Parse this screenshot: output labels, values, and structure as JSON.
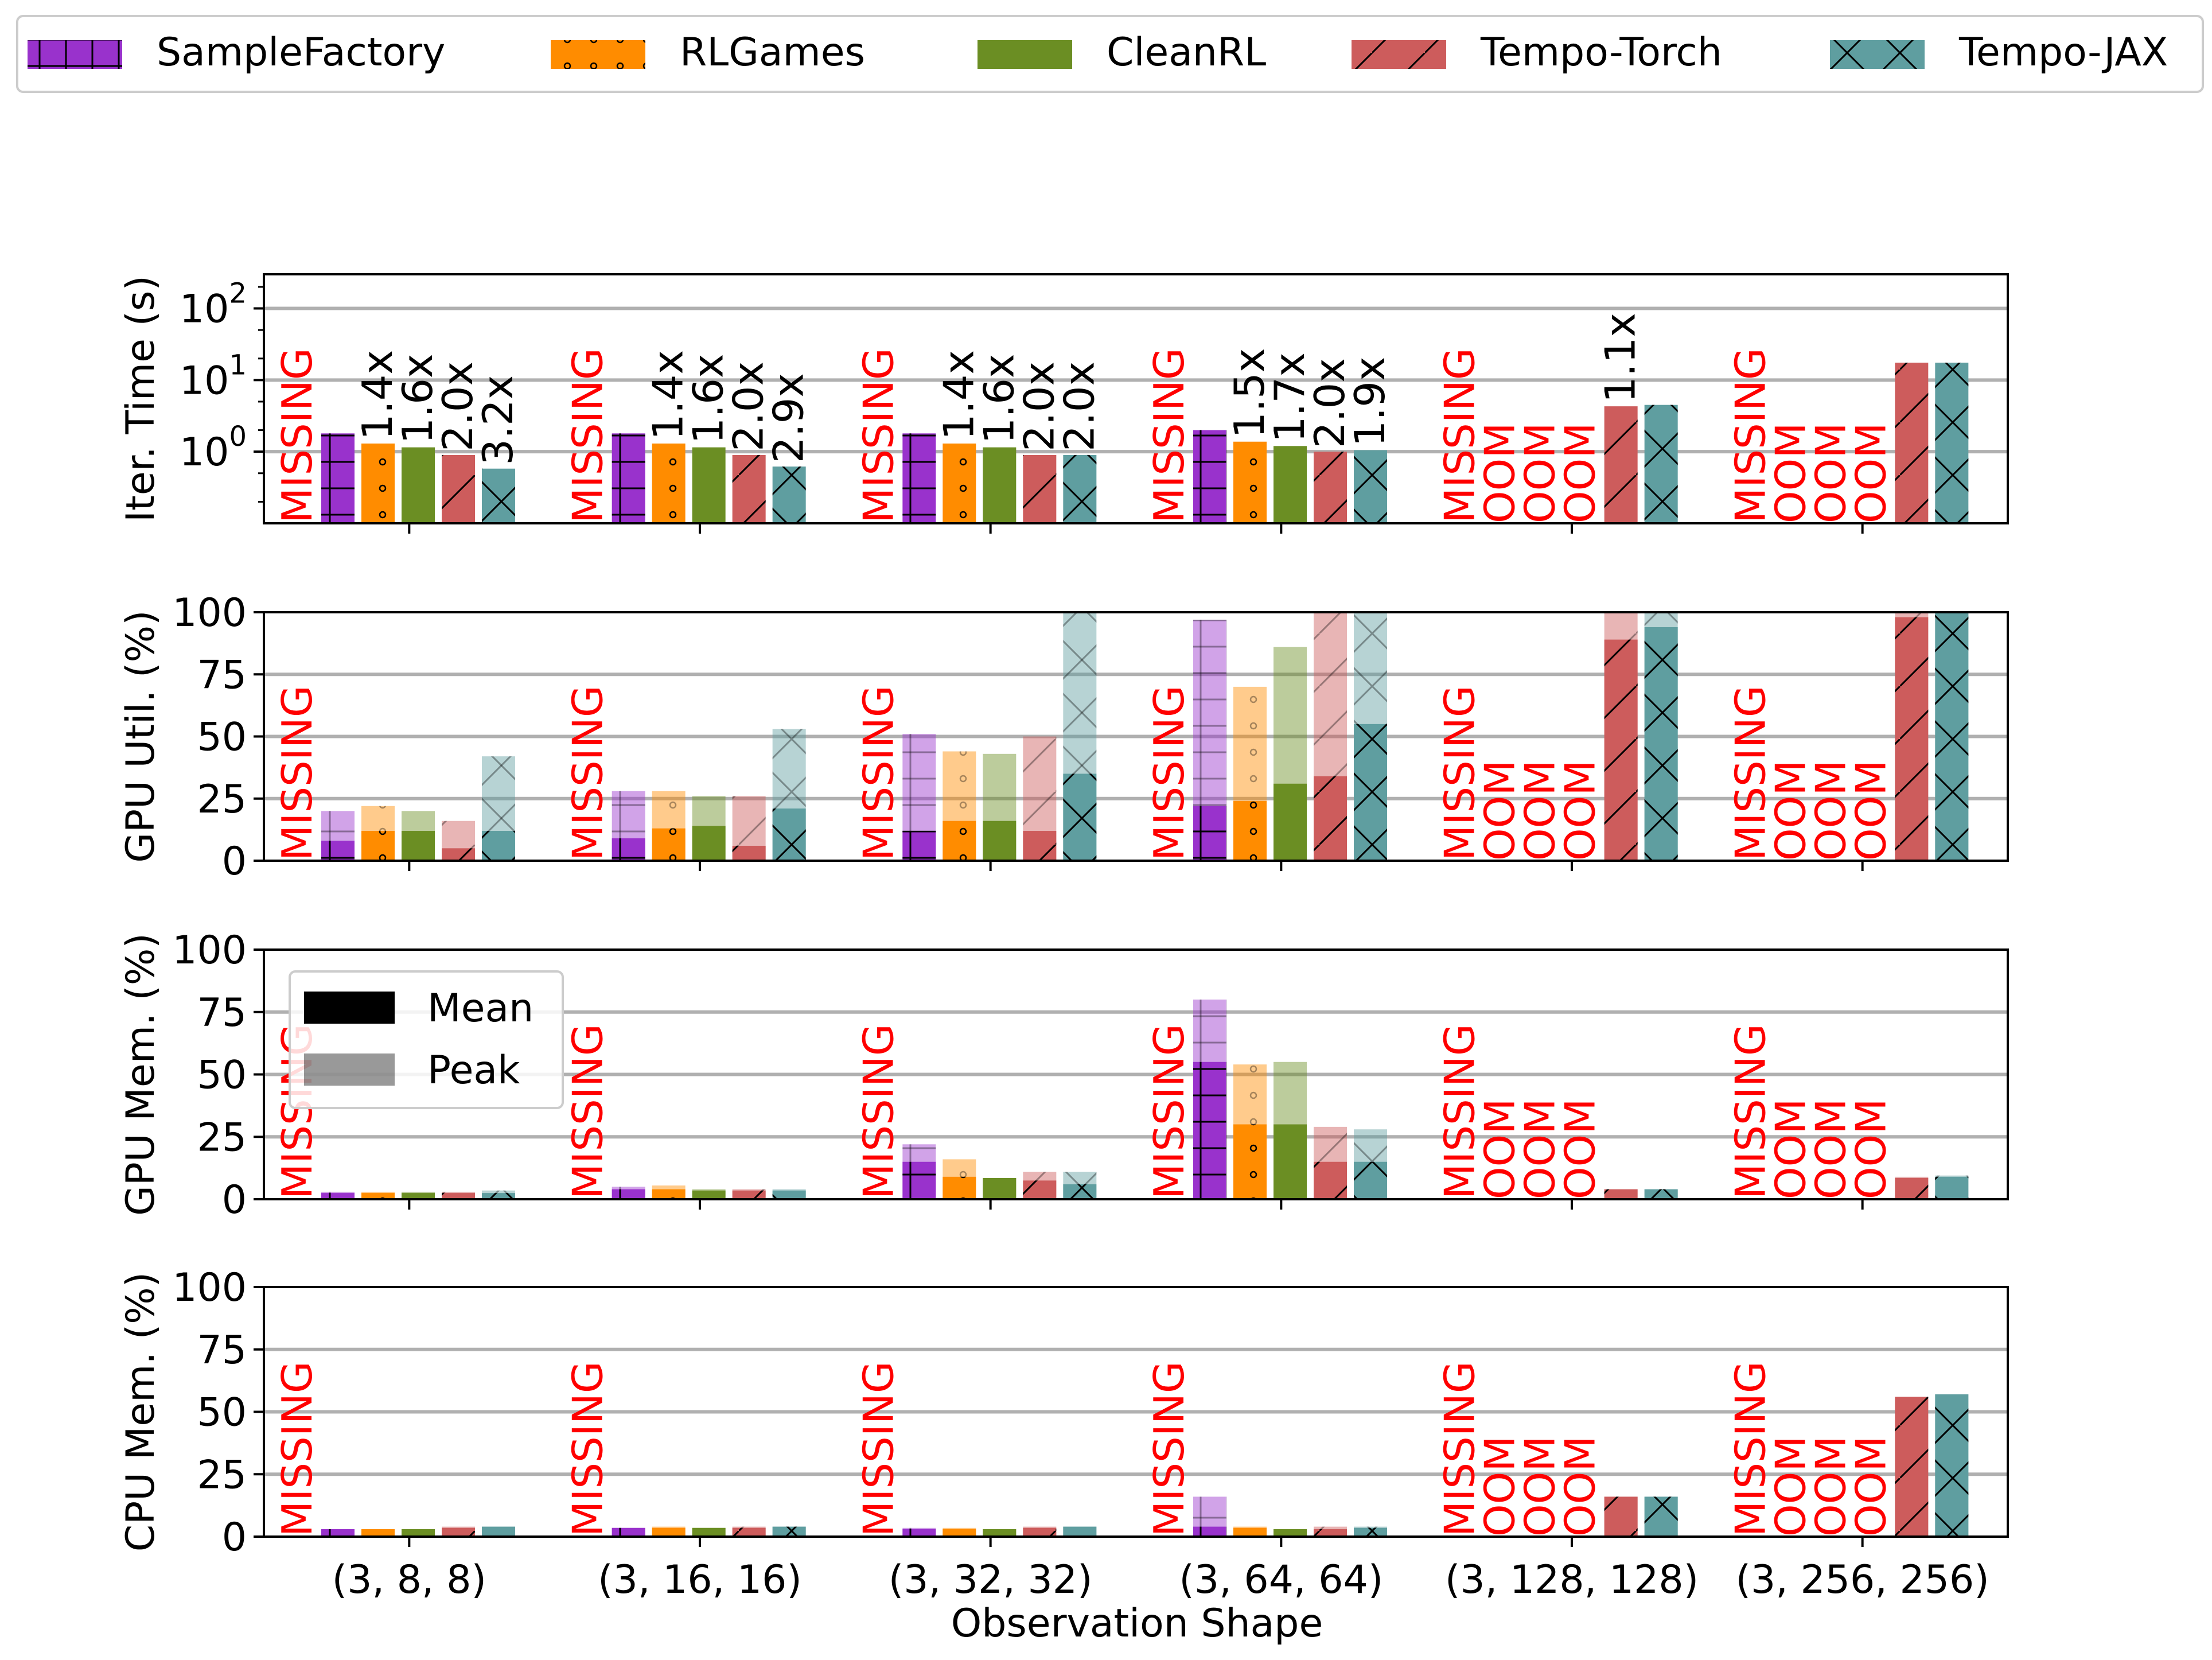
{
  "legend": {
    "items": [
      "SampleFactory",
      "RLGames",
      "CleanRL",
      "Tempo-Torch",
      "Tempo-JAX"
    ],
    "stat_items": [
      "Mean",
      "Peak"
    ]
  },
  "colors": {
    "SampleFactory": "#9932CC",
    "RLGames": "#FF8C00",
    "CleanRL": "#6B8E23",
    "Tempo-Torch": "#CD5C5C",
    "Tempo-JAX": "#5F9EA0",
    "missing": "#FF0000",
    "grid": "#b0b0b0"
  },
  "hatches": {
    "SampleFactory": "plus",
    "RLGames": "dots",
    "CleanRL": "none",
    "Tempo-Torch": "slash",
    "Tempo-JAX": "cross"
  },
  "chart_data": {
    "type": "bar",
    "xlabel": "Observation Shape",
    "categories": [
      "(3, 8, 8)",
      "(3, 16, 16)",
      "(3, 32, 32)",
      "(3, 64, 64)",
      "(3, 128, 128)",
      "(3, 256, 256)"
    ],
    "missing_label": "MISSING",
    "oom_label": "OOM",
    "series_names": [
      "SampleFactory",
      "RLGames",
      "CleanRL",
      "Tempo-Torch",
      "Tempo-JAX"
    ],
    "panels": [
      {
        "ylabel": "Iter. Time (s)",
        "scale": "log",
        "ylim": [
          0.1,
          300
        ],
        "yticks": [
          1,
          10,
          100
        ],
        "ytick_labels": [
          "10^0",
          "10^1",
          "10^2"
        ],
        "values": [
          [
            1.8,
            1.3,
            1.15,
            0.9,
            0.58
          ],
          [
            1.8,
            1.3,
            1.15,
            0.9,
            0.62
          ],
          [
            1.8,
            1.3,
            1.15,
            0.9,
            0.9
          ],
          [
            2.0,
            1.38,
            1.2,
            1.0,
            1.05
          ],
          [
            null,
            null,
            null,
            4.3,
            4.5
          ],
          [
            null,
            null,
            null,
            17.5,
            17.5
          ]
        ],
        "speedups": [
          [
            "",
            "1.4x",
            "1.6x",
            "2.0x",
            "3.2x"
          ],
          [
            "",
            "1.4x",
            "1.6x",
            "2.0x",
            "2.9x"
          ],
          [
            "",
            "1.4x",
            "1.6x",
            "2.0x",
            "2.0x"
          ],
          [
            "",
            "1.5x",
            "1.7x",
            "2.0x",
            "1.9x"
          ],
          [
            "",
            "",
            "",
            "1.1x",
            ""
          ],
          [
            "",
            "",
            "",
            "",
            ""
          ]
        ]
      },
      {
        "ylabel": "GPU Util. (%)",
        "scale": "linear",
        "ylim": [
          0,
          100
        ],
        "yticks": [
          0,
          25,
          50,
          75,
          100
        ],
        "ytick_labels": [
          "0",
          "25",
          "50",
          "75",
          "100"
        ],
        "mean": [
          [
            8,
            12,
            12,
            5,
            12
          ],
          [
            9,
            13,
            14,
            6,
            21
          ],
          [
            12,
            16,
            16,
            12,
            35
          ],
          [
            22,
            24,
            31,
            34,
            55
          ],
          [
            null,
            null,
            null,
            89,
            94
          ],
          [
            null,
            null,
            null,
            98,
            100
          ]
        ],
        "peak": [
          [
            20,
            22,
            20,
            16,
            42
          ],
          [
            28,
            28,
            26,
            26,
            53
          ],
          [
            51,
            44,
            43,
            50,
            100
          ],
          [
            97,
            70,
            86,
            100,
            100
          ],
          [
            null,
            null,
            null,
            100,
            100
          ],
          [
            null,
            null,
            null,
            100,
            100
          ]
        ]
      },
      {
        "ylabel": "GPU Mem. (%)",
        "scale": "linear",
        "ylim": [
          0,
          100
        ],
        "yticks": [
          0,
          25,
          50,
          75,
          100
        ],
        "ytick_labels": [
          "0",
          "25",
          "50",
          "75",
          "100"
        ],
        "mean": [
          [
            2.5,
            2.5,
            2.5,
            2.5,
            2.5
          ],
          [
            4,
            4,
            3.5,
            3.5,
            3.5
          ],
          [
            15,
            9,
            8.5,
            7.5,
            6
          ],
          [
            55,
            30,
            30,
            15,
            15
          ],
          [
            null,
            null,
            null,
            4,
            4
          ],
          [
            null,
            null,
            null,
            8.5,
            9
          ]
        ],
        "peak": [
          [
            3,
            3,
            3,
            3,
            3.5
          ],
          [
            5,
            5.5,
            4,
            4,
            4
          ],
          [
            22,
            16,
            8.5,
            11,
            11
          ],
          [
            80,
            54,
            55,
            29,
            28
          ],
          [
            null,
            null,
            null,
            4,
            4
          ],
          [
            null,
            null,
            null,
            9,
            9.5
          ]
        ]
      },
      {
        "ylabel": "CPU Mem. (%)",
        "scale": "linear",
        "ylim": [
          0,
          100
        ],
        "yticks": [
          0,
          25,
          50,
          75,
          100
        ],
        "ytick_labels": [
          "0",
          "25",
          "50",
          "75",
          "100"
        ],
        "mean": [
          [
            3,
            3,
            3,
            3.5,
            4
          ],
          [
            3.5,
            3.5,
            3.5,
            3.5,
            4
          ],
          [
            3,
            3,
            3,
            3.5,
            4
          ],
          [
            4,
            3.5,
            3,
            3,
            3.5
          ],
          [
            null,
            null,
            null,
            16,
            16
          ],
          [
            null,
            null,
            null,
            56,
            57
          ]
        ],
        "peak": [
          [
            3,
            3,
            3,
            4,
            4
          ],
          [
            3.5,
            4,
            3.5,
            4,
            4
          ],
          [
            3.5,
            3.5,
            3,
            4,
            4
          ],
          [
            16,
            4,
            3,
            4,
            4
          ],
          [
            null,
            null,
            null,
            16,
            16
          ],
          [
            null,
            null,
            null,
            56,
            57
          ]
        ]
      }
    ]
  }
}
